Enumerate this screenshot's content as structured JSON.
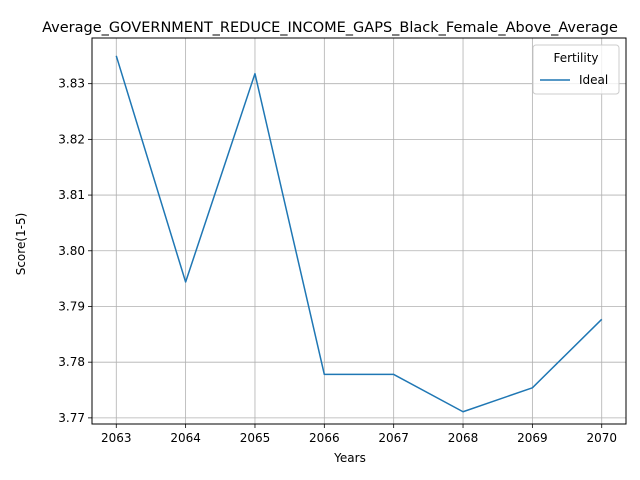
{
  "chart_data": {
    "type": "line",
    "title": "Average_GOVERNMENT_REDUCE_INCOME_GAPS_Black_Female_Above_Average",
    "xlabel": "Years",
    "ylabel": "Score(1-5)",
    "x": [
      2063,
      2064,
      2065,
      2066,
      2067,
      2068,
      2069,
      2070
    ],
    "xticks": [
      "2063",
      "2064",
      "2065",
      "2066",
      "2067",
      "2068",
      "2069",
      "2070"
    ],
    "yticks": [
      "3.77",
      "3.78",
      "3.79",
      "3.80",
      "3.81",
      "3.82",
      "3.83"
    ],
    "ytick_values": [
      3.77,
      3.78,
      3.79,
      3.8,
      3.81,
      3.82,
      3.83
    ],
    "xlim": [
      2062.65,
      2070.35
    ],
    "ylim": [
      3.7689,
      3.8382
    ],
    "grid": true,
    "legend": {
      "title": "Fertility",
      "placement": "top-right"
    },
    "series": [
      {
        "name": "Ideal",
        "color": "#1f77b4",
        "values": [
          3.835,
          3.7944,
          3.8318,
          3.7778,
          3.7778,
          3.7711,
          3.7754,
          3.7877
        ]
      }
    ]
  }
}
